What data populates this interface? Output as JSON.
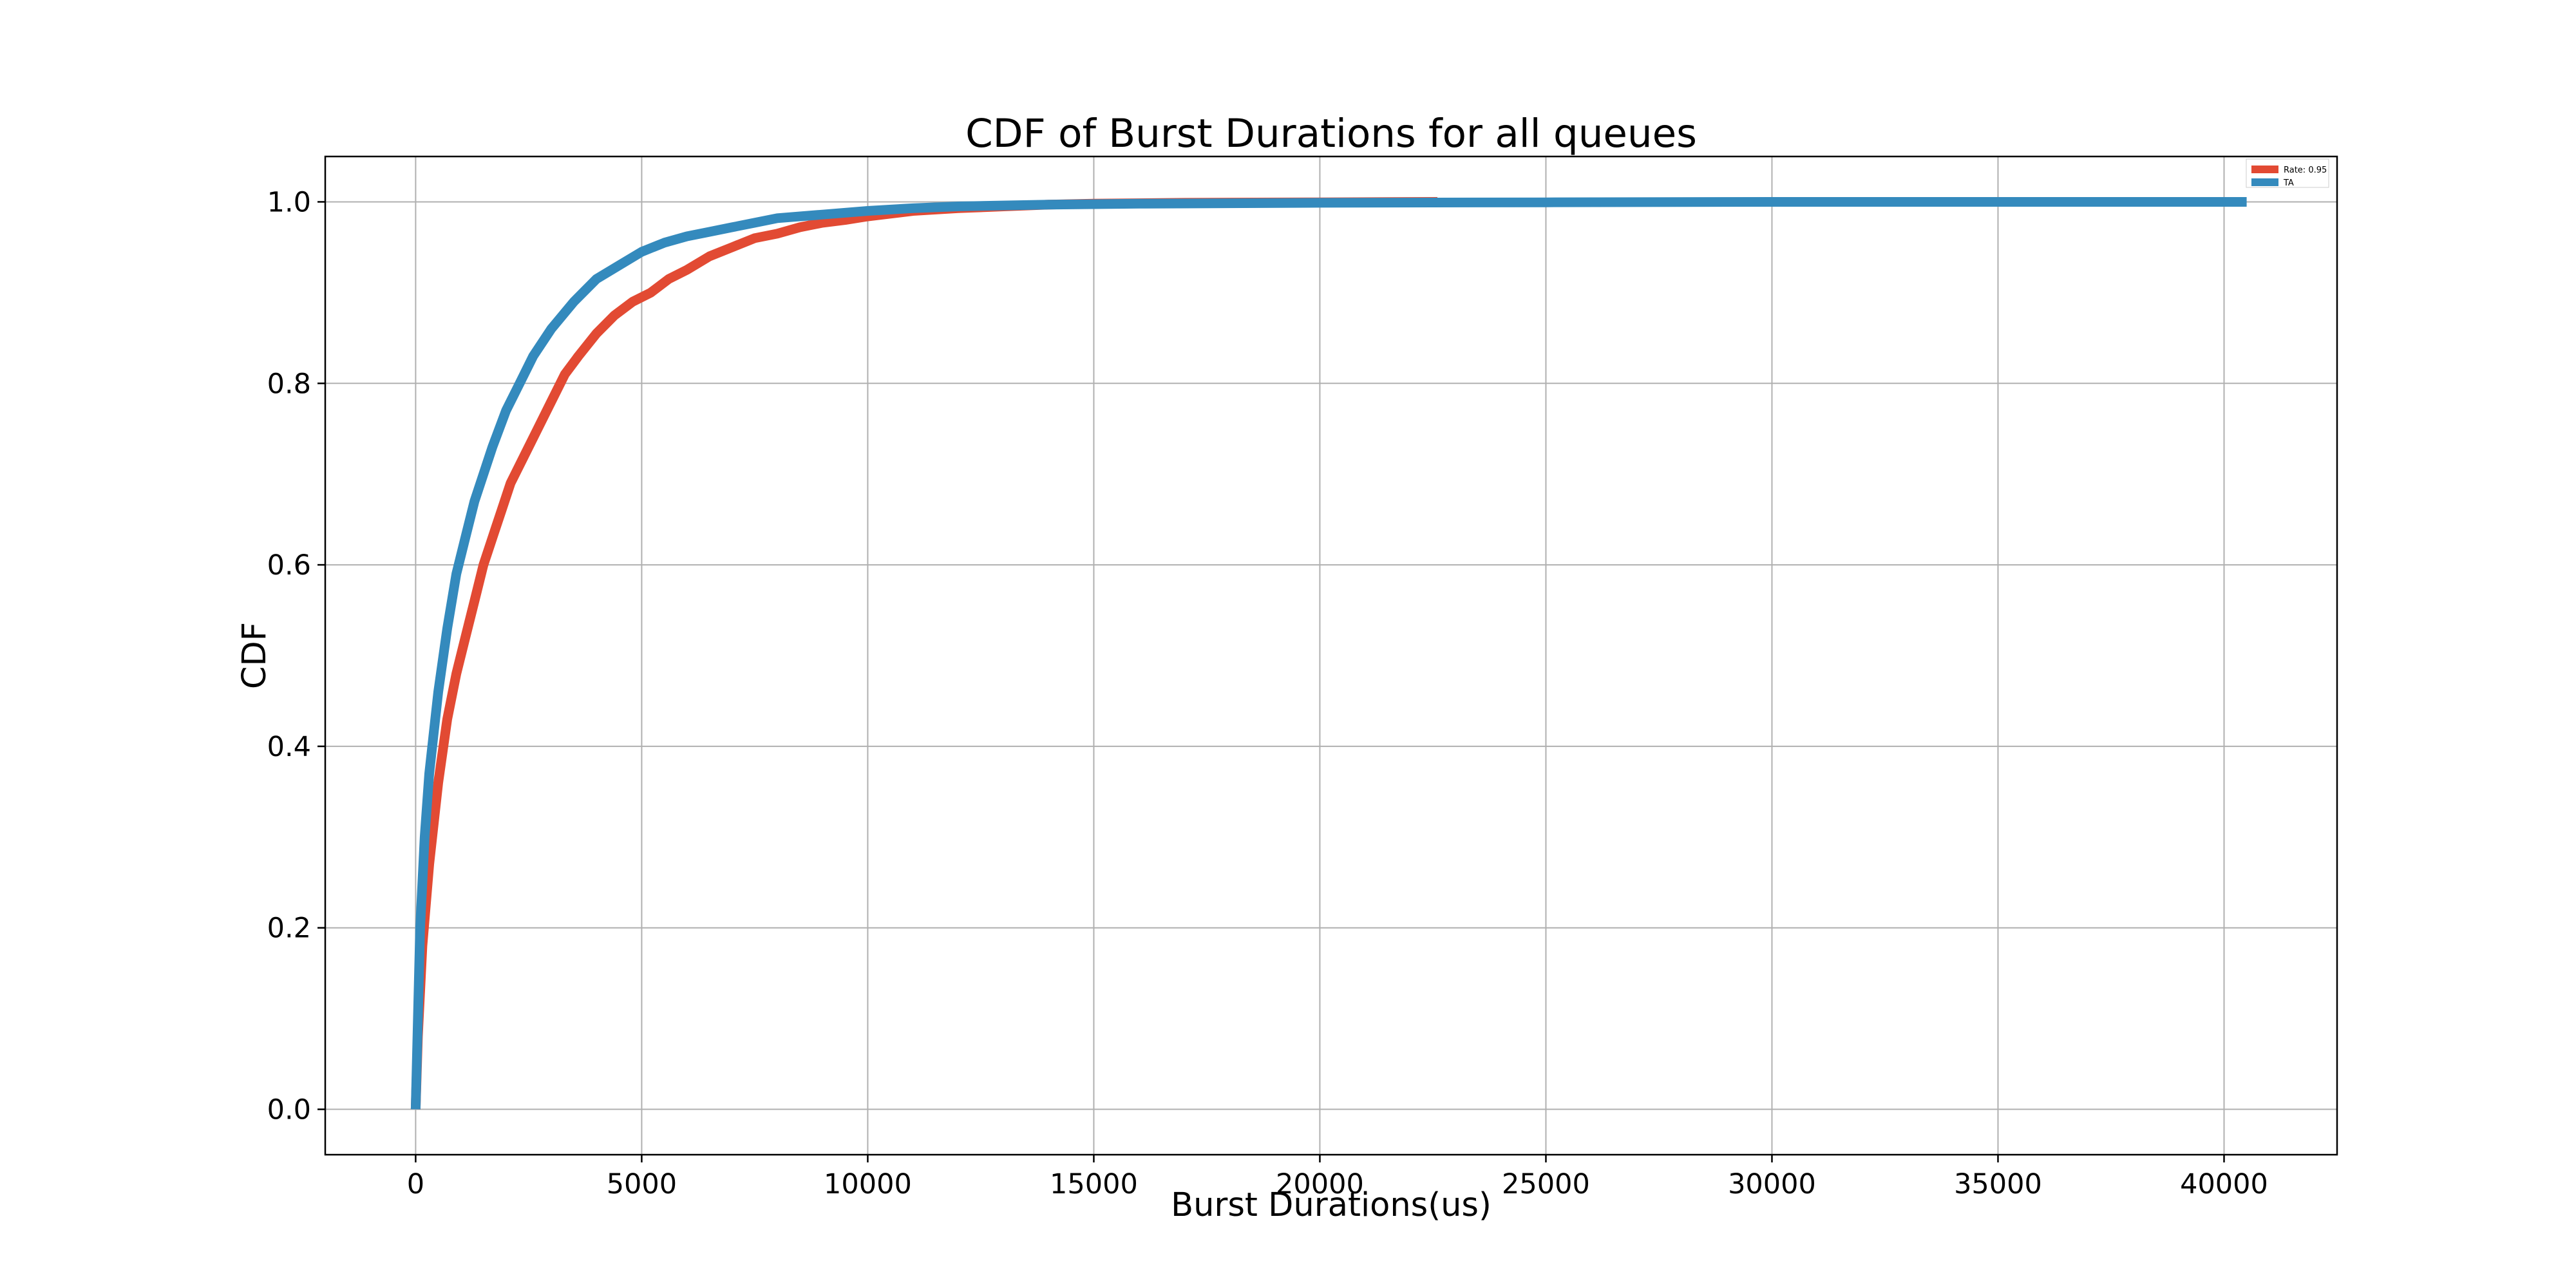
{
  "chart_data": {
    "type": "line",
    "title": "CDF of Burst Durations for all queues",
    "xlabel": "Burst Durations(us)",
    "ylabel": "CDF",
    "xlim": [
      -2000,
      42500
    ],
    "ylim": [
      -0.05,
      1.05
    ],
    "xticks": [
      0,
      5000,
      10000,
      15000,
      20000,
      25000,
      30000,
      35000,
      40000
    ],
    "xtick_labels": [
      "0",
      "5000",
      "10000",
      "15000",
      "20000",
      "25000",
      "30000",
      "35000",
      "40000"
    ],
    "yticks": [
      0.0,
      0.2,
      0.4,
      0.6,
      0.8,
      1.0
    ],
    "ytick_labels": [
      "0.0",
      "0.2",
      "0.4",
      "0.6",
      "0.8",
      "1.0"
    ],
    "grid": true,
    "legend_position": "top-right",
    "series": [
      {
        "name": "Rate: 0.95",
        "color": "#e24a33",
        "x": [
          0,
          50,
          150,
          300,
          500,
          700,
          900,
          1100,
          1300,
          1500,
          1700,
          1900,
          2100,
          2400,
          2700,
          3000,
          3300,
          3600,
          4000,
          4400,
          4800,
          5200,
          5600,
          6000,
          6500,
          7000,
          7500,
          8000,
          8500,
          9000,
          9500,
          10000,
          10500,
          11000,
          12000,
          13000,
          14000,
          15000,
          17000,
          20000,
          22600
        ],
        "y": [
          0.0,
          0.08,
          0.18,
          0.27,
          0.36,
          0.43,
          0.48,
          0.52,
          0.56,
          0.6,
          0.63,
          0.66,
          0.69,
          0.72,
          0.75,
          0.78,
          0.81,
          0.83,
          0.855,
          0.875,
          0.89,
          0.9,
          0.915,
          0.925,
          0.94,
          0.95,
          0.96,
          0.965,
          0.972,
          0.977,
          0.98,
          0.984,
          0.987,
          0.99,
          0.993,
          0.995,
          0.997,
          0.998,
          0.999,
          0.9995,
          1.0
        ]
      },
      {
        "name": "TA",
        "color": "#348abd",
        "x": [
          0,
          50,
          100,
          200,
          300,
          500,
          700,
          900,
          1100,
          1300,
          1500,
          1700,
          2000,
          2300,
          2600,
          3000,
          3500,
          4000,
          4500,
          5000,
          5500,
          6000,
          6500,
          7000,
          7500,
          8000,
          9000,
          10000,
          11000,
          12000,
          14000,
          16000,
          20000,
          25000,
          30000,
          35000,
          40500
        ],
        "y": [
          0.0,
          0.1,
          0.2,
          0.3,
          0.37,
          0.46,
          0.53,
          0.59,
          0.63,
          0.67,
          0.7,
          0.73,
          0.77,
          0.8,
          0.83,
          0.86,
          0.89,
          0.915,
          0.93,
          0.945,
          0.955,
          0.962,
          0.967,
          0.972,
          0.977,
          0.982,
          0.986,
          0.99,
          0.993,
          0.995,
          0.997,
          0.998,
          0.999,
          0.9995,
          1.0,
          1.0,
          1.0
        ]
      }
    ]
  }
}
